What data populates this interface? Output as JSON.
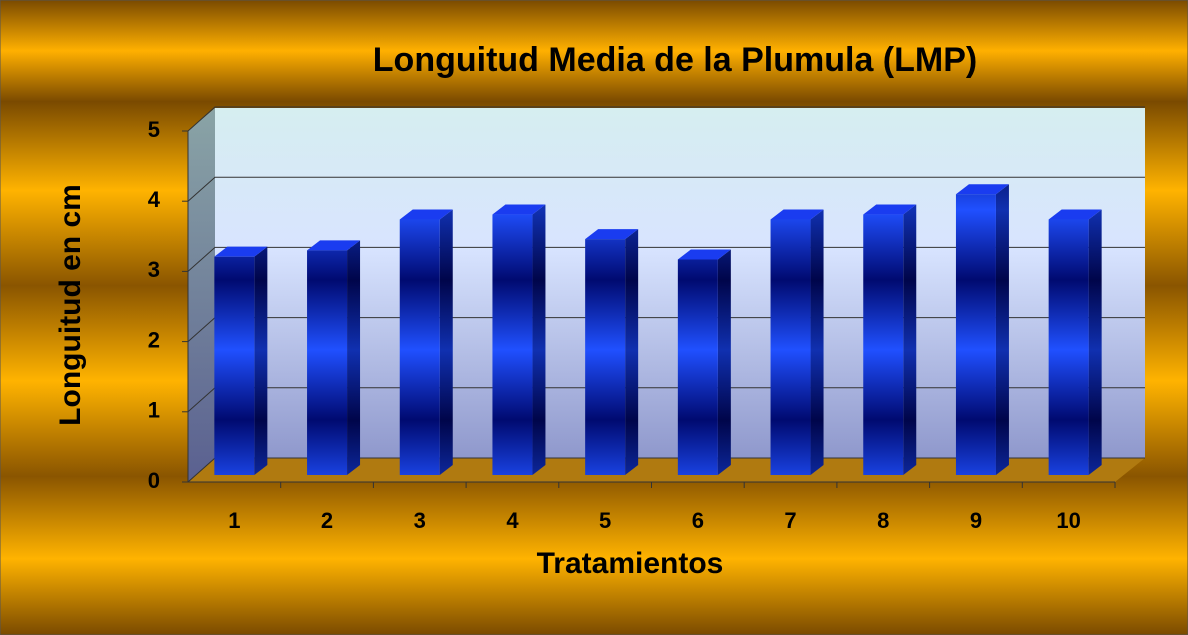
{
  "chart_data": {
    "type": "bar",
    "title": "Longuitud Media de la Plumula (LMP)",
    "x_label": "Tratamientos",
    "y_label": "Longuitud en cm",
    "categories": [
      "1",
      "2",
      "3",
      "4",
      "5",
      "6",
      "7",
      "8",
      "9",
      "10"
    ],
    "values": [
      3.11,
      3.2,
      3.64,
      3.71,
      3.36,
      3.07,
      3.64,
      3.71,
      4.0,
      3.64
    ],
    "color": "#0a2fd8",
    "ylim": [
      0,
      5
    ],
    "yticks": [
      0,
      1,
      2,
      3,
      4,
      5
    ],
    "grid": true
  }
}
